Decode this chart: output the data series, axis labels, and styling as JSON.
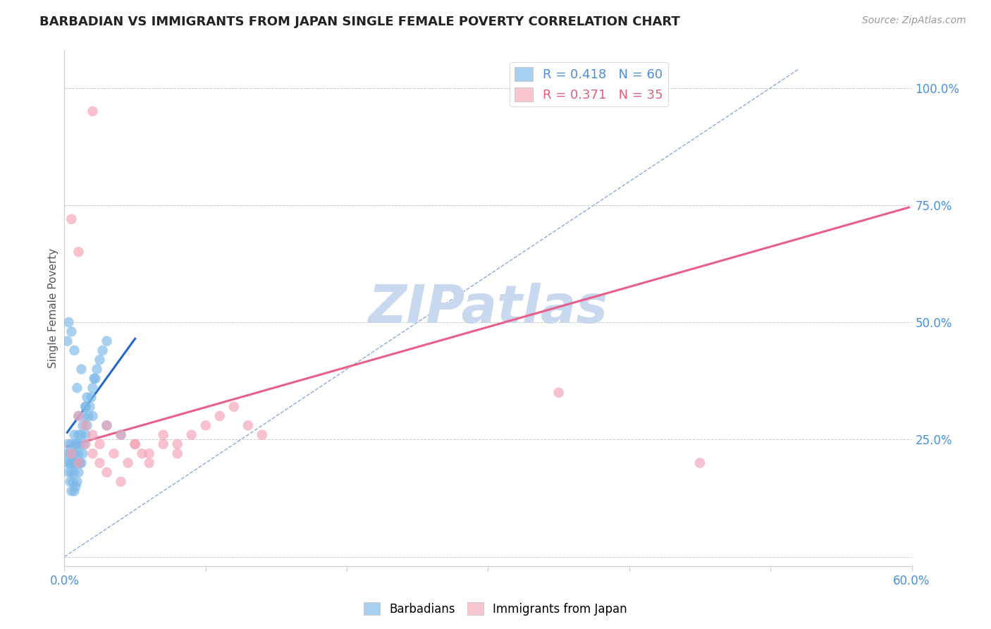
{
  "title": "BARBADIAN VS IMMIGRANTS FROM JAPAN SINGLE FEMALE POVERTY CORRELATION CHART",
  "source": "Source: ZipAtlas.com",
  "ylabel": "Single Female Poverty",
  "xlim": [
    0.0,
    0.6
  ],
  "ylim": [
    -0.02,
    1.08
  ],
  "x_ticks": [
    0.0,
    0.1,
    0.2,
    0.3,
    0.4,
    0.5,
    0.6
  ],
  "y_ticks": [
    0.0,
    0.25,
    0.5,
    0.75,
    1.0
  ],
  "y_tick_labels": [
    "",
    "25.0%",
    "50.0%",
    "75.0%",
    "100.0%"
  ],
  "legend_box_blue": "#a8d0f0",
  "legend_box_pink": "#f9c6d0",
  "legend_text_blue": "#4a90d9",
  "legend_text_pink": "#e0607a",
  "legend_label_blue": "R = 0.418   N = 60",
  "legend_label_pink": "R = 0.371   N = 35",
  "barbadian_color": "#7ab8e8",
  "japan_color": "#f4a0b5",
  "blue_trend_color": "#2266cc",
  "pink_trend_color": "#e85f8a",
  "ref_line_color": "#88aadd",
  "watermark": "ZIPatlas",
  "watermark_color": "#c8d8ee",
  "title_color": "#222222",
  "tick_label_color": "#4a90d9",
  "grid_color": "#cccccc",
  "barbadian_x": [
    0.001,
    0.002,
    0.003,
    0.003,
    0.004,
    0.004,
    0.004,
    0.005,
    0.005,
    0.005,
    0.005,
    0.006,
    0.006,
    0.006,
    0.007,
    0.007,
    0.007,
    0.007,
    0.008,
    0.008,
    0.008,
    0.009,
    0.009,
    0.009,
    0.01,
    0.01,
    0.01,
    0.01,
    0.011,
    0.011,
    0.012,
    0.012,
    0.013,
    0.013,
    0.014,
    0.014,
    0.015,
    0.015,
    0.016,
    0.016,
    0.017,
    0.018,
    0.019,
    0.02,
    0.021,
    0.022,
    0.023,
    0.025,
    0.027,
    0.03,
    0.002,
    0.003,
    0.005,
    0.007,
    0.009,
    0.012,
    0.015,
    0.02,
    0.03,
    0.04
  ],
  "barbadian_y": [
    0.22,
    0.2,
    0.18,
    0.24,
    0.16,
    0.2,
    0.22,
    0.14,
    0.18,
    0.2,
    0.24,
    0.16,
    0.2,
    0.22,
    0.14,
    0.18,
    0.22,
    0.26,
    0.15,
    0.2,
    0.24,
    0.16,
    0.2,
    0.24,
    0.18,
    0.22,
    0.26,
    0.3,
    0.2,
    0.24,
    0.2,
    0.26,
    0.22,
    0.28,
    0.24,
    0.3,
    0.26,
    0.32,
    0.28,
    0.34,
    0.3,
    0.32,
    0.34,
    0.36,
    0.38,
    0.38,
    0.4,
    0.42,
    0.44,
    0.46,
    0.46,
    0.5,
    0.48,
    0.44,
    0.36,
    0.4,
    0.32,
    0.3,
    0.28,
    0.26
  ],
  "japan_x": [
    0.005,
    0.01,
    0.015,
    0.02,
    0.025,
    0.03,
    0.035,
    0.04,
    0.045,
    0.05,
    0.055,
    0.06,
    0.07,
    0.08,
    0.09,
    0.1,
    0.11,
    0.12,
    0.13,
    0.14,
    0.01,
    0.015,
    0.02,
    0.025,
    0.03,
    0.04,
    0.05,
    0.06,
    0.07,
    0.08,
    0.35,
    0.45,
    0.005,
    0.01,
    0.02
  ],
  "japan_y": [
    0.22,
    0.2,
    0.24,
    0.22,
    0.2,
    0.18,
    0.22,
    0.16,
    0.2,
    0.24,
    0.22,
    0.2,
    0.24,
    0.22,
    0.26,
    0.28,
    0.3,
    0.32,
    0.28,
    0.26,
    0.3,
    0.28,
    0.26,
    0.24,
    0.28,
    0.26,
    0.24,
    0.22,
    0.26,
    0.24,
    0.35,
    0.2,
    0.72,
    0.65,
    0.95
  ],
  "blue_trend_x": [
    0.002,
    0.05
  ],
  "blue_trend_y": [
    0.265,
    0.465
  ],
  "pink_trend_x": [
    0.002,
    0.598
  ],
  "pink_trend_y": [
    0.235,
    0.745
  ],
  "ref_line_x": [
    0.0,
    0.52
  ],
  "ref_line_y": [
    0.0,
    1.04
  ]
}
